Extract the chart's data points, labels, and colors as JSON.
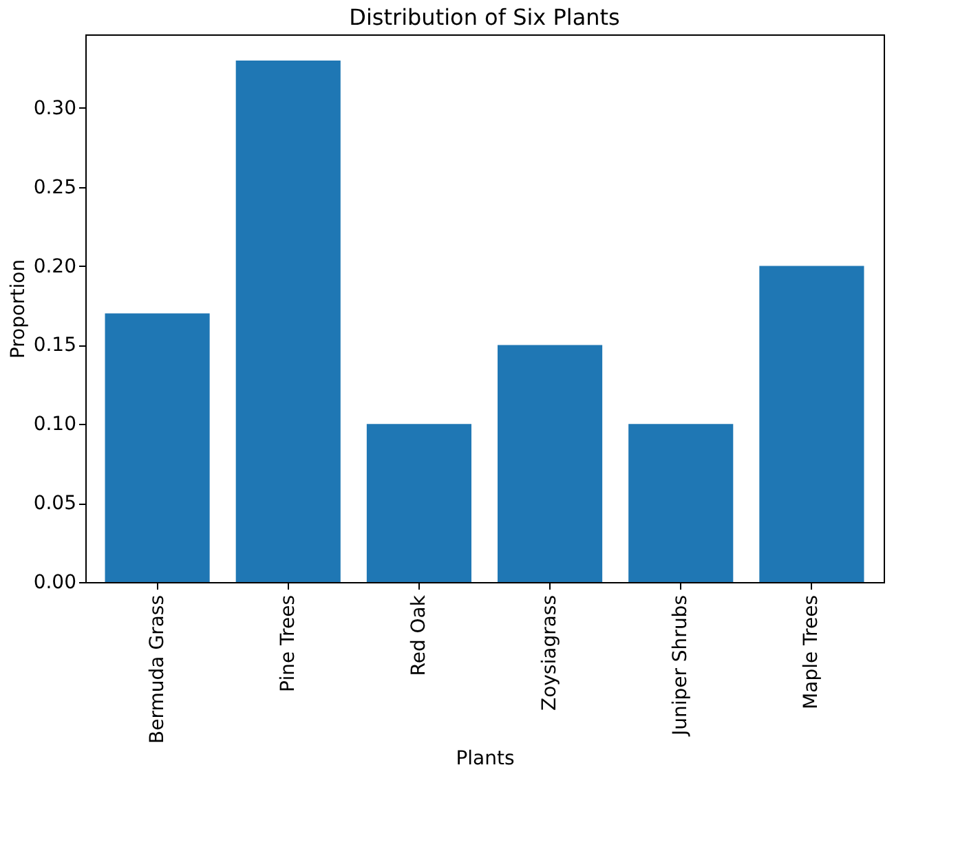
{
  "chart_data": {
    "type": "bar",
    "title": "Distribution of Six Plants",
    "xlabel": "Plants",
    "ylabel": "Proportion",
    "categories": [
      "Bermuda Grass",
      "Pine Trees",
      "Red Oak",
      "Zoysiagrass",
      "Juniper Shrubs",
      "Maple Trees"
    ],
    "values": [
      0.17,
      0.33,
      0.1,
      0.15,
      0.1,
      0.2
    ],
    "color": "#1f77b4",
    "ylim": [
      0,
      0.3465
    ],
    "yticks": [
      {
        "value": 0,
        "label": "0.00"
      },
      {
        "value": 0.05,
        "label": "0.05"
      },
      {
        "value": 0.1,
        "label": "0.10"
      },
      {
        "value": 0.15,
        "label": "0.15"
      },
      {
        "value": 0.2,
        "label": "0.20"
      },
      {
        "value": 0.25,
        "label": "0.25"
      },
      {
        "value": 0.3,
        "label": "0.30"
      }
    ],
    "grid": false
  }
}
